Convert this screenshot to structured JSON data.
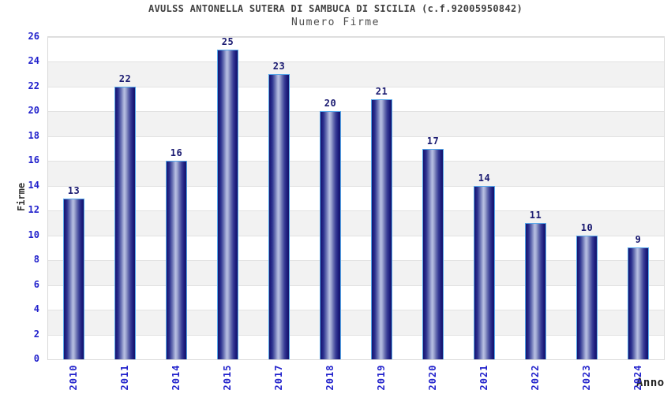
{
  "chart_data": {
    "type": "bar",
    "title": "AVULSS ANTONELLA SUTERA DI SAMBUCA DI SICILIA (c.f.92005950842)",
    "subtitle": "Numero Firme",
    "xlabel": "Anno",
    "ylabel": "Firme",
    "categories": [
      "2010",
      "2011",
      "2014",
      "2015",
      "2017",
      "2018",
      "2019",
      "2020",
      "2021",
      "2022",
      "2023",
      "2024"
    ],
    "values": [
      13,
      22,
      16,
      25,
      23,
      20,
      21,
      17,
      14,
      11,
      10,
      9
    ],
    "ylim": [
      0,
      26
    ],
    "ytick_step": 2,
    "yticks": [
      0,
      2,
      4,
      6,
      8,
      10,
      12,
      14,
      16,
      18,
      20,
      22,
      24,
      26
    ],
    "grid": "horizontal-alternating-bands",
    "legend": "none",
    "value_labels": "above-bars",
    "colors": {
      "title": "#404040",
      "subtitle": "#4d4d4d",
      "tick_label": "#2222cc",
      "value_label": "#191970",
      "axis_label": "#333333",
      "xlabel_text": "#222222",
      "band_light": "#ffffff",
      "band_dark": "#f2f2f2",
      "grid_line": "#e2e2e2",
      "plot_border": "#d9d9d9",
      "bar_border": "#56a7ea",
      "bar_gradient": [
        "#17176d",
        "#1e1e80",
        "#2e3490",
        "#6b74b5",
        "#a3abd6",
        "#b7bfe2",
        "#9fa7d1",
        "#6a71b2",
        "#3a3f97",
        "#1d1d7e",
        "#14146a"
      ]
    }
  }
}
